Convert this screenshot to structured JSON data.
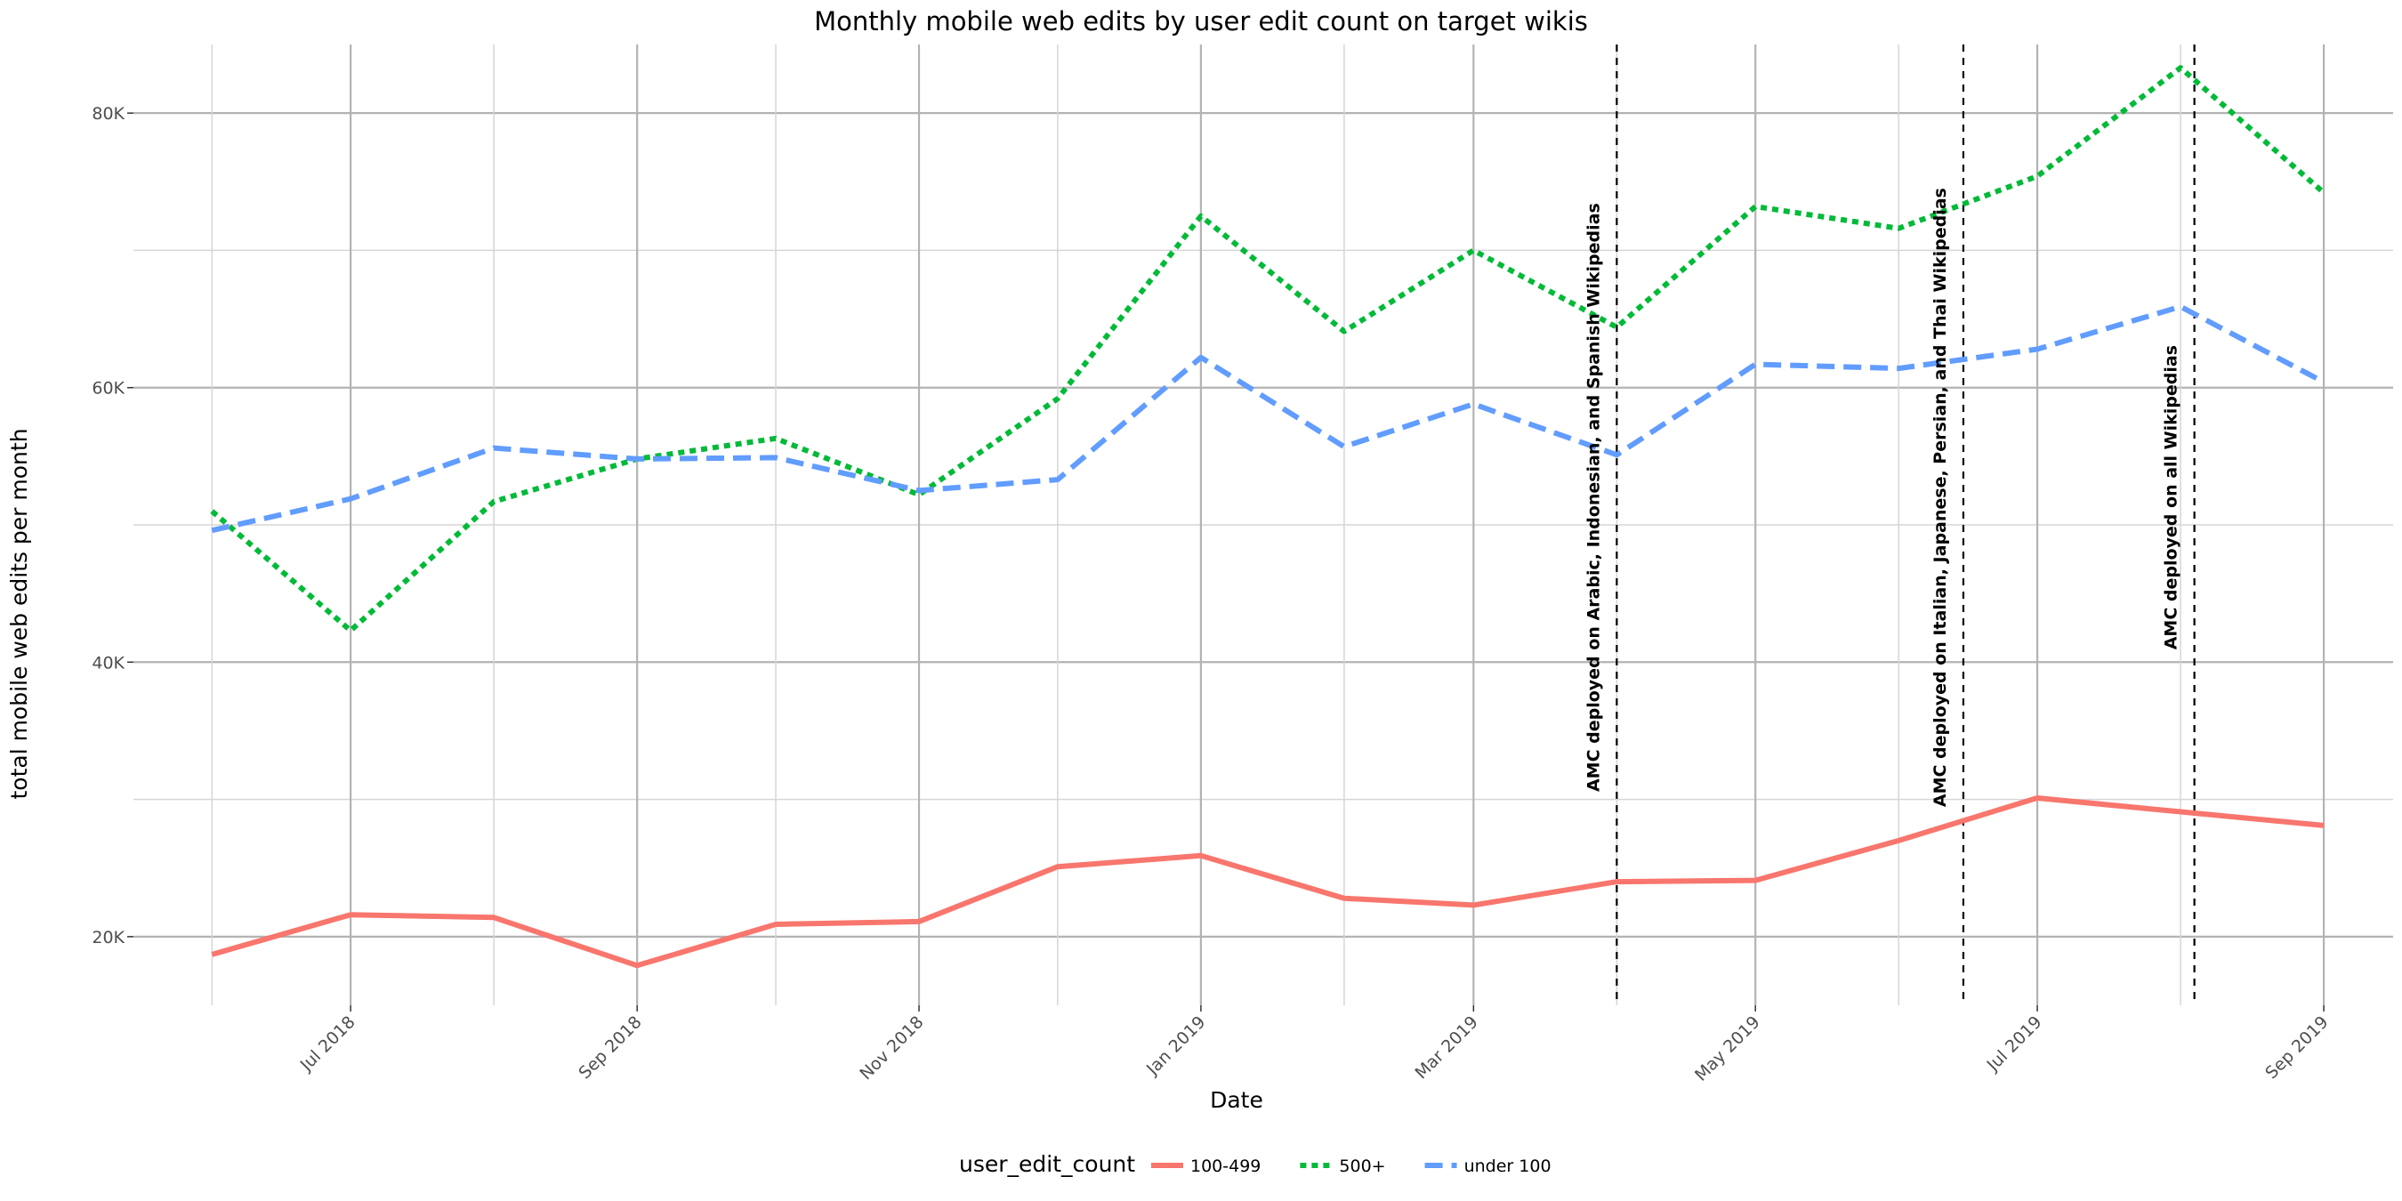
{
  "chart_data": {
    "type": "line",
    "title": "Monthly mobile web edits by user edit count on target wikis",
    "xlabel": "Date",
    "ylabel": "total mobile web edits per month",
    "x": [
      "2018-06",
      "2018-07",
      "2018-08",
      "2018-09",
      "2018-10",
      "2018-11",
      "2018-12",
      "2019-01",
      "2019-02",
      "2019-03",
      "2019-04",
      "2019-05",
      "2019-06",
      "2019-07",
      "2019-08",
      "2019-09"
    ],
    "x_range": [
      "2018-05-15",
      "2019-09-16"
    ],
    "x_ticks": [
      {
        "date": "2018-07",
        "label": "Jul 2018"
      },
      {
        "date": "2018-09",
        "label": "Sep 2018"
      },
      {
        "date": "2018-11",
        "label": "Nov 2018"
      },
      {
        "date": "2019-01",
        "label": "Jan 2019"
      },
      {
        "date": "2019-03",
        "label": "Mar 2019"
      },
      {
        "date": "2019-05",
        "label": "May 2019"
      },
      {
        "date": "2019-07",
        "label": "Jul 2019"
      },
      {
        "date": "2019-09",
        "label": "Sep 2019"
      }
    ],
    "ylim": [
      15000,
      85000
    ],
    "y_ticks": [
      {
        "value": 20000,
        "label": "20K"
      },
      {
        "value": 40000,
        "label": "40K"
      },
      {
        "value": 60000,
        "label": "60K"
      },
      {
        "value": 80000,
        "label": "80K"
      }
    ],
    "grid": true,
    "legend": {
      "title": "user_edit_count",
      "position": "bottom"
    },
    "series": [
      {
        "name": "100-499",
        "color": "#F8766D",
        "dash": "solid",
        "values": [
          18700,
          21600,
          21400,
          17900,
          20900,
          21100,
          25100,
          25900,
          22800,
          22300,
          24000,
          24100,
          27000,
          30100,
          29100,
          28100
        ]
      },
      {
        "name": "500+",
        "color": "#00BA38",
        "dash": "dotted",
        "values": [
          51000,
          42300,
          51700,
          54800,
          56300,
          52200,
          59200,
          72500,
          64100,
          70000,
          64400,
          73200,
          71600,
          75400,
          83300,
          74200
        ]
      },
      {
        "name": "under 100",
        "color": "#619CFF",
        "dash": "dashed",
        "values": [
          49600,
          51900,
          55600,
          54800,
          54900,
          52500,
          53300,
          62200,
          55700,
          58800,
          55100,
          61700,
          61400,
          62800,
          65900,
          60400
        ]
      }
    ],
    "vlines": [
      {
        "date": "2019-04-01",
        "label": "AMC deployed on Arabic, Indonesian, and Spanish Wikipedias"
      },
      {
        "date": "2019-06-15",
        "label": "AMC deployed on Italian, Japanese, Persian, and Thai Wikipedias"
      },
      {
        "date": "2019-08-04",
        "label": "AMC deployed on all Wikipedias"
      }
    ]
  }
}
